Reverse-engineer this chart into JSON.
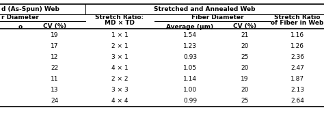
{
  "header_row1_left": "d (As-Spun) Web",
  "header_row1_right": "Stretched and Annealed Web",
  "header_row2_left": "r Diameter",
  "header_row2_stretch": "Stretch Ratio:",
  "header_row2_stretch2": "MD × TD",
  "header_row2_fiber": "Fiber Diameter",
  "header_row2_sr_line1": "Stretch Ratio",
  "header_row2_sr_line2": "of Fiber in Web",
  "header_row3_col1a": "o",
  "header_row3_col1b": "CV (%)",
  "header_row3_avg": "Average (µm)",
  "header_row3_cv": "CV (%)",
  "cv_as_spun": [
    19,
    17,
    12,
    22,
    11,
    13,
    24
  ],
  "stretch_ratio": [
    "1 × 1",
    "2 × 1",
    "3 × 1",
    "4 × 1",
    "2 × 2",
    "3 × 3",
    "4 × 4"
  ],
  "avg_diameter": [
    "1.54",
    "1.23",
    "0.93",
    "1.05",
    "1.14",
    "1.00",
    "0.99"
  ],
  "cv_annealed": [
    21,
    20,
    25,
    20,
    19,
    20,
    25
  ],
  "stretch_ratio_fiber": [
    "1.16",
    "1.26",
    "2.36",
    "2.47",
    "1.87",
    "2.13",
    "2.64"
  ],
  "bg_color": "#ffffff",
  "font_size": 6.5
}
